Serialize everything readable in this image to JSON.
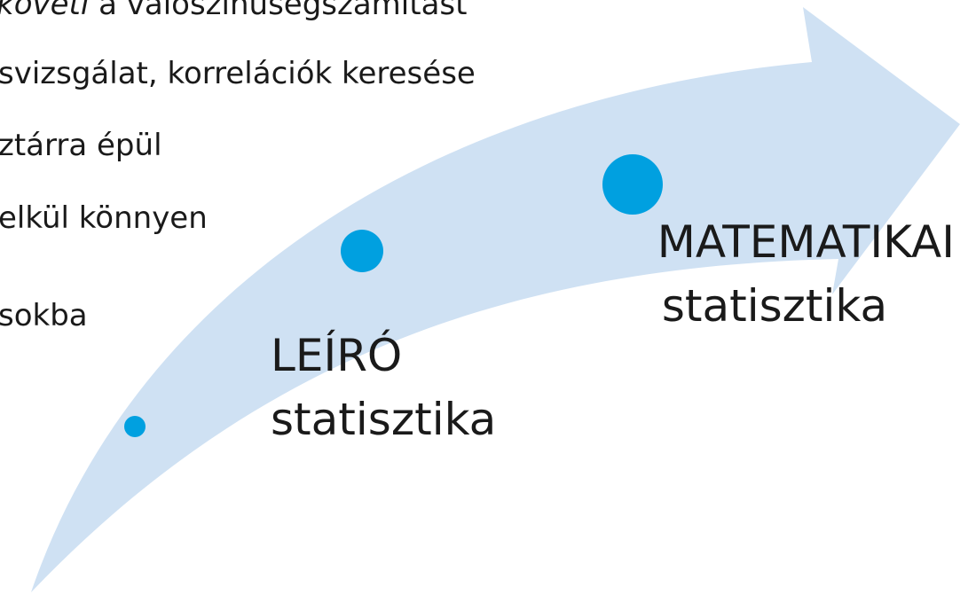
{
  "left_text": {
    "first_line": {
      "italic": "követi",
      "rest": " a valószínűségszámítást"
    },
    "lines": [
      "svizsgálat, korrelációk keresése",
      "ztárra épül",
      "elkül könnyen",
      "sokba"
    ]
  },
  "stages": [
    {
      "title": "LEÍRÓ",
      "subtitle": "statisztika"
    },
    {
      "title": "MATEMATIKAI",
      "subtitle": "statisztika"
    }
  ]
}
